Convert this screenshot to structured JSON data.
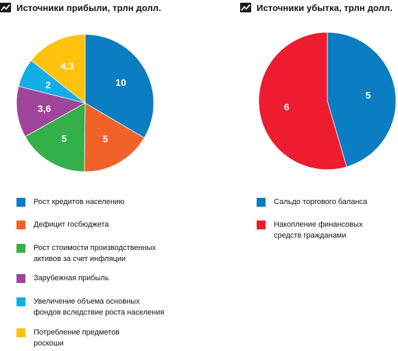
{
  "chart_data": [
    {
      "type": "pie",
      "title": "Источники прибыли, трлн долл.",
      "slices": [
        {
          "label": "Рост кредитов населению",
          "value": 10,
          "value_label": "10",
          "color": "#0b7dc2"
        },
        {
          "label": "Дефицит госбюджета",
          "value": 5,
          "value_label": "5",
          "color": "#f0622a"
        },
        {
          "label": "Рост стоимости производственных активов за счет инфляции",
          "value": 5,
          "value_label": "5",
          "color": "#34b04a"
        },
        {
          "label": "Зарубежная прибыль",
          "value": 3.6,
          "value_label": "3,6",
          "color": "#a0469a"
        },
        {
          "label": "Увеличение объема основных фондов вследствие роста населения",
          "value": 2,
          "value_label": "2",
          "color": "#13aee8"
        },
        {
          "label": "Потребление предметов роскоши",
          "value": 4.3,
          "value_label": "4,3",
          "color": "#ffc20e"
        }
      ],
      "legend": [
        [
          "Рост кредитов населению"
        ],
        [
          "Дефицит госбюджета"
        ],
        [
          "Рост стоимости производственных",
          "активов за счет инфляции"
        ],
        [
          "Зарубежная прибыль"
        ],
        [
          "Увеличение объема основных",
          "фондов вследствие роста населения"
        ],
        [
          "Потребление предметов",
          "роскоши"
        ]
      ]
    },
    {
      "type": "pie",
      "title": "Источники убытка, трлн долл.",
      "slices": [
        {
          "label": "Сальдо торгового баланса",
          "value": 5,
          "value_label": "5",
          "color": "#0b7dc2"
        },
        {
          "label": "Накопление финансовых средств гражданами",
          "value": 6,
          "value_label": "6",
          "color": "#ed1c2e"
        }
      ],
      "legend": [
        [
          "Сальдо торгового баланса"
        ],
        [
          "Накопление финансовых",
          "средств гражданами"
        ]
      ]
    }
  ]
}
